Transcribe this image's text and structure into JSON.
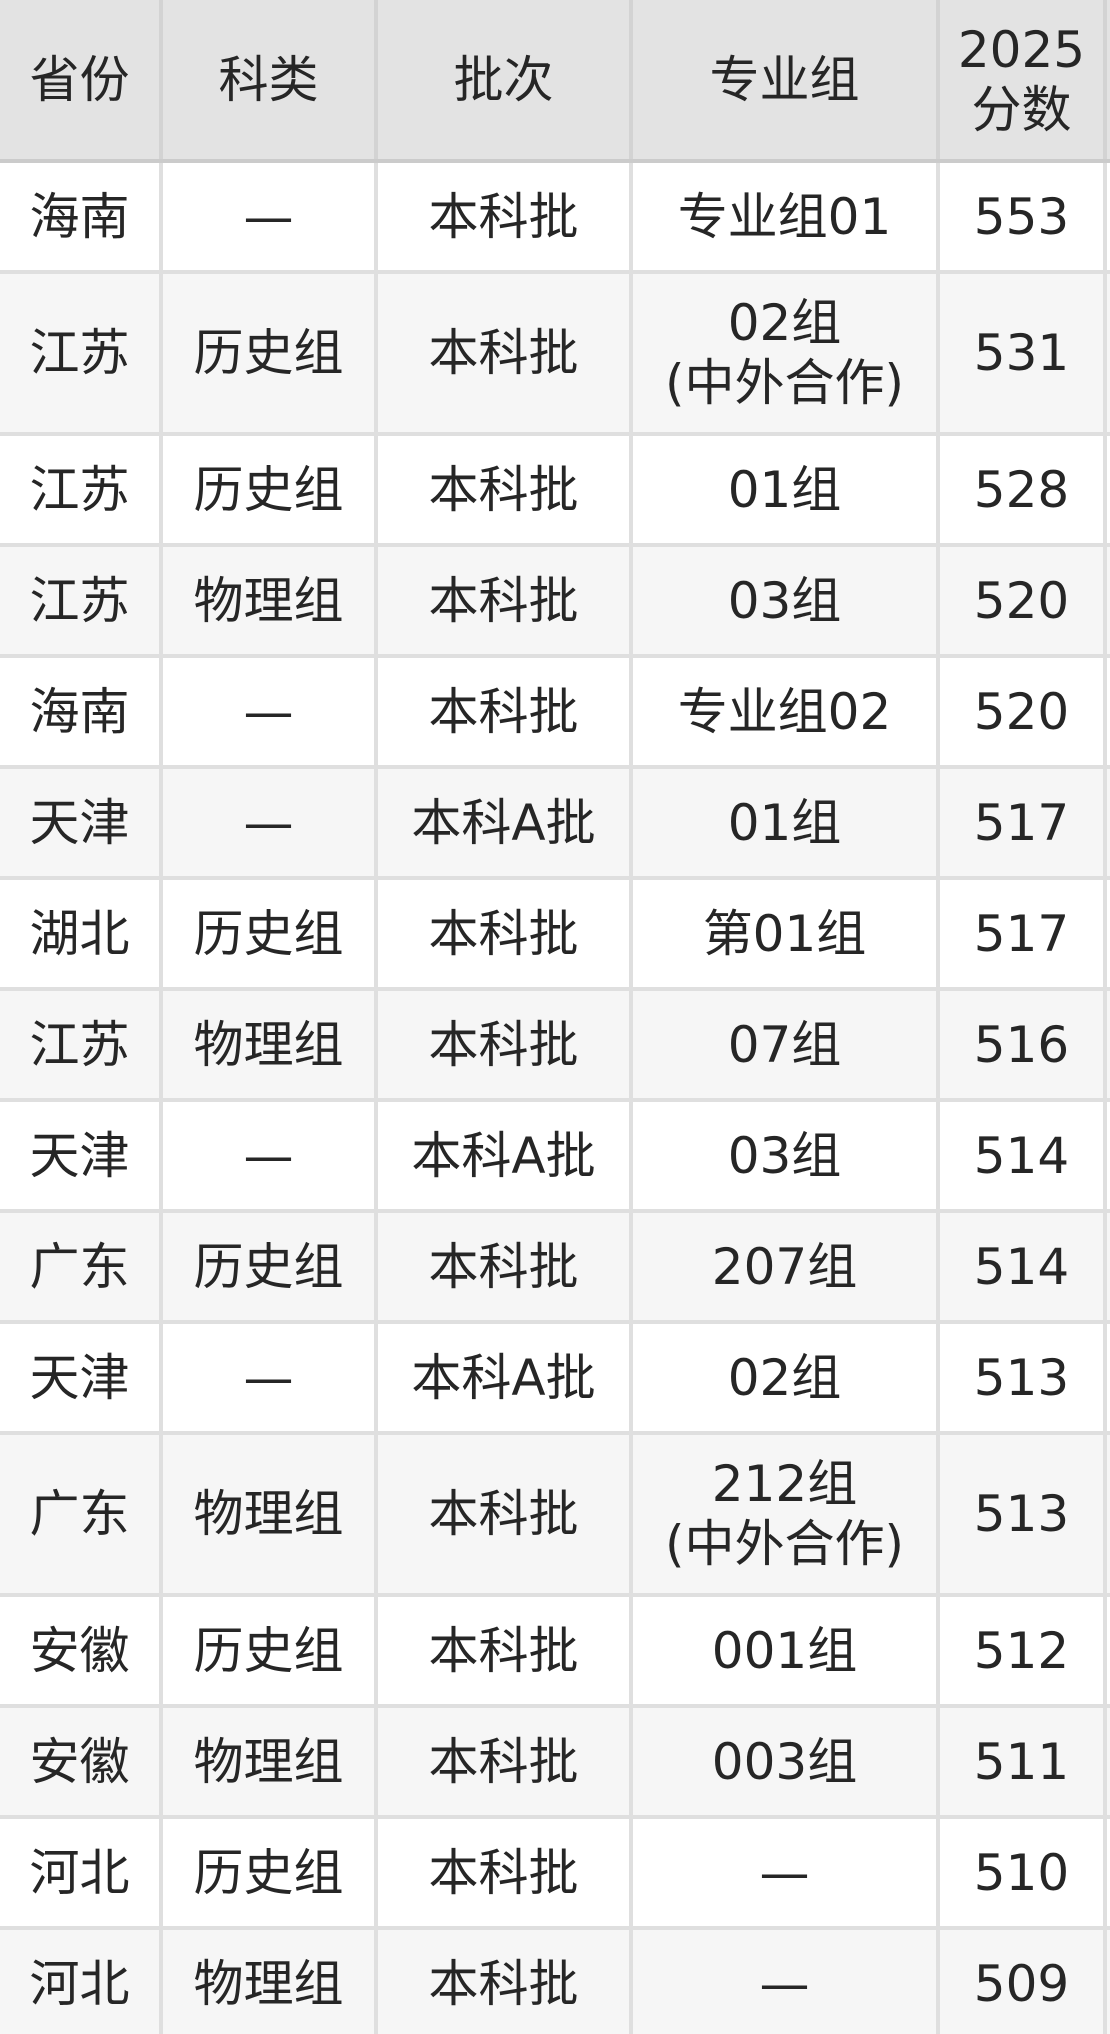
{
  "table": {
    "columns": [
      {
        "key": "province",
        "label": "省份"
      },
      {
        "key": "category",
        "label": "科类"
      },
      {
        "key": "batch",
        "label": "批次"
      },
      {
        "key": "group",
        "label": "专业组"
      },
      {
        "key": "score",
        "label": "2025\n分数"
      }
    ],
    "rows": [
      [
        "海南",
        "—",
        "本科批",
        "专业组01",
        "553"
      ],
      [
        "江苏",
        "历史组",
        "本科批",
        "02组\n(中外合作)",
        "531"
      ],
      [
        "江苏",
        "历史组",
        "本科批",
        "01组",
        "528"
      ],
      [
        "江苏",
        "物理组",
        "本科批",
        "03组",
        "520"
      ],
      [
        "海南",
        "—",
        "本科批",
        "专业组02",
        "520"
      ],
      [
        "天津",
        "—",
        "本科A批",
        "01组",
        "517"
      ],
      [
        "湖北",
        "历史组",
        "本科批",
        "第01组",
        "517"
      ],
      [
        "江苏",
        "物理组",
        "本科批",
        "07组",
        "516"
      ],
      [
        "天津",
        "—",
        "本科A批",
        "03组",
        "514"
      ],
      [
        "广东",
        "历史组",
        "本科批",
        "207组",
        "514"
      ],
      [
        "天津",
        "—",
        "本科A批",
        "02组",
        "513"
      ],
      [
        "广东",
        "物理组",
        "本科批",
        "212组\n(中外合作)",
        "513"
      ],
      [
        "安徽",
        "历史组",
        "本科批",
        "001组",
        "512"
      ],
      [
        "安徽",
        "物理组",
        "本科批",
        "003组",
        "511"
      ],
      [
        "河北",
        "历史组",
        "本科批",
        "—",
        "510"
      ],
      [
        "河北",
        "物理组",
        "本科批",
        "—",
        "509"
      ]
    ],
    "colors": {
      "header_background": "#e3e3e3",
      "alt_row_background": "#f6f6f6",
      "grid_line": "#dfdfdf",
      "header_underline": "#cbcbcb",
      "text": "#262626"
    }
  }
}
